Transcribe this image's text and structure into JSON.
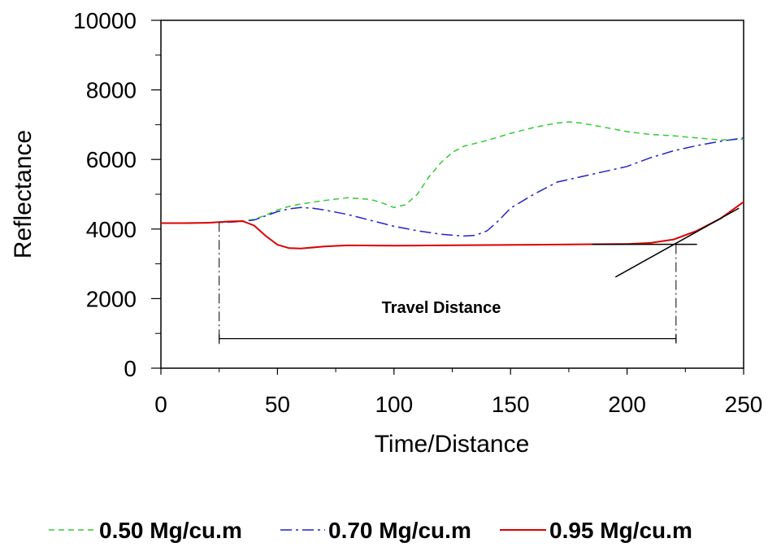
{
  "chart_data": {
    "type": "line",
    "xlabel": "Time/Distance",
    "ylabel": "Reflectance",
    "xlim": [
      0,
      250
    ],
    "ylim": [
      0,
      10000
    ],
    "x_ticks": [
      0,
      50,
      100,
      150,
      200,
      250
    ],
    "y_ticks": [
      0,
      2000,
      4000,
      6000,
      8000,
      10000
    ],
    "x_tick_labels": [
      "0",
      "50",
      "100",
      "150",
      "200",
      "250"
    ],
    "y_tick_labels": [
      "0",
      "2000",
      "4000",
      "6000",
      "8000",
      "10000"
    ],
    "grid": false,
    "legend_position": "bottom",
    "series": [
      {
        "name": "0.50 Mg/cu.m",
        "color": "#33cc33",
        "dash": "dashed",
        "x": [
          0,
          10,
          20,
          30,
          35,
          40,
          45,
          50,
          55,
          60,
          70,
          80,
          90,
          95,
          100,
          105,
          110,
          115,
          120,
          125,
          130,
          140,
          150,
          160,
          170,
          175,
          180,
          190,
          200,
          210,
          220,
          230,
          240,
          250
        ],
        "y": [
          4170,
          4170,
          4180,
          4200,
          4220,
          4280,
          4400,
          4550,
          4650,
          4720,
          4820,
          4900,
          4850,
          4750,
          4620,
          4700,
          5000,
          5500,
          5900,
          6200,
          6380,
          6550,
          6750,
          6920,
          7050,
          7080,
          7050,
          6930,
          6800,
          6720,
          6680,
          6620,
          6560,
          6580
        ]
      },
      {
        "name": "0.70 Mg/cu.m",
        "color": "#2222cc",
        "dash": "dashdot",
        "x": [
          0,
          10,
          20,
          30,
          35,
          40,
          45,
          50,
          55,
          60,
          65,
          70,
          80,
          90,
          100,
          110,
          120,
          130,
          135,
          140,
          145,
          150,
          160,
          170,
          180,
          190,
          200,
          210,
          220,
          230,
          240,
          250
        ],
        "y": [
          4170,
          4170,
          4180,
          4200,
          4220,
          4260,
          4380,
          4500,
          4580,
          4620,
          4600,
          4550,
          4420,
          4250,
          4080,
          3950,
          3850,
          3800,
          3820,
          3950,
          4250,
          4600,
          5000,
          5350,
          5500,
          5650,
          5800,
          6050,
          6250,
          6400,
          6520,
          6620
        ]
      },
      {
        "name": "0.95 Mg/cu.m",
        "color": "#dd0000",
        "dash": "solid",
        "x": [
          0,
          10,
          20,
          30,
          35,
          40,
          45,
          50,
          55,
          60,
          70,
          80,
          100,
          120,
          140,
          160,
          180,
          200,
          210,
          220,
          230,
          240,
          250
        ],
        "y": [
          4170,
          4170,
          4180,
          4220,
          4230,
          4100,
          3800,
          3550,
          3450,
          3440,
          3500,
          3530,
          3520,
          3530,
          3540,
          3550,
          3560,
          3570,
          3600,
          3700,
          3950,
          4300,
          4780
        ]
      }
    ],
    "annotations": {
      "travel_distance_label": "Travel Distance",
      "travel_start_x": 25,
      "travel_end_x": 221,
      "travel_bar_y": 850,
      "baseline_line": {
        "x": [
          185,
          230
        ],
        "y": [
          3560,
          3560
        ]
      },
      "tangent_line": {
        "x": [
          195,
          248
        ],
        "y": [
          2620,
          4600
        ]
      }
    }
  }
}
